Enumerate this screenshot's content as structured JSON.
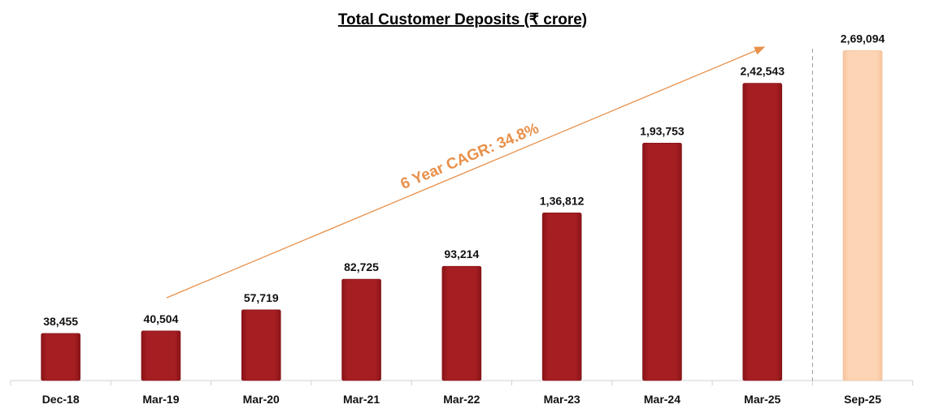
{
  "chart_data": {
    "type": "bar",
    "title": "Total Customer Deposits (₹ crore)",
    "categories": [
      "Dec-18",
      "Mar-19",
      "Mar-20",
      "Mar-21",
      "Mar-22",
      "Mar-23",
      "Mar-24",
      "Mar-25",
      "Sep-25"
    ],
    "values": [
      38455,
      40504,
      57719,
      82725,
      93214,
      136812,
      193753,
      242543,
      269094
    ],
    "value_labels": [
      "38,455",
      "40,504",
      "57,719",
      "82,725",
      "93,214",
      "1,36,812",
      "1,93,753",
      "2,42,543",
      "2,69,094"
    ],
    "ylim": [
      0,
      280000
    ],
    "grid": false,
    "annotation": "6 Year CAGR: 34.8%",
    "colors": {
      "bar": "#A51E22",
      "highlight_bar": "#FDD5B5",
      "arrow": "#E8904A"
    },
    "highlight_category": "Sep-25"
  }
}
